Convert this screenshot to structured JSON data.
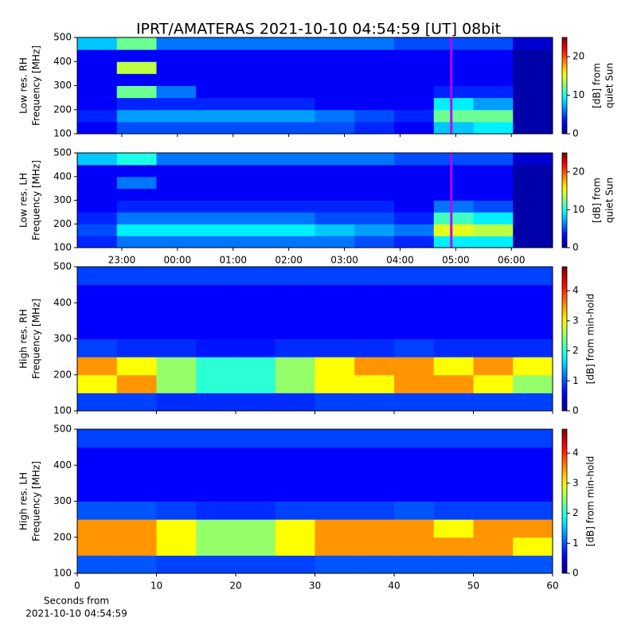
{
  "chart_data": [
    {
      "type": "heatmap",
      "title": "IPRT/AMATERAS 2021-10-10 04:54:59 [UT]   08bit",
      "ylabel": [
        "Low res. RH",
        "Frequency [MHz]"
      ],
      "xlim": [
        -1.8,
        6.74
      ],
      "xticks": [
        -1,
        0,
        1,
        2,
        3,
        4,
        5,
        6
      ],
      "show_xtick_labels": false,
      "ylim": [
        100,
        500
      ],
      "yticks": [
        100,
        200,
        300,
        400,
        500
      ],
      "colormap": "jet",
      "clim": [
        0,
        25
      ],
      "cticks": [
        0,
        10,
        20
      ],
      "colorbar_label": [
        "[dB] from",
        "quiet Sun"
      ],
      "now_line_x": 4.92,
      "now_line_color": "#c000ff",
      "z": [
        [
          3,
          5,
          5,
          5,
          5,
          5,
          5,
          4,
          3,
          8,
          9,
          1
        ],
        [
          4,
          7,
          7,
          7,
          7,
          7,
          6,
          5,
          4,
          12,
          12,
          1
        ],
        [
          3,
          4,
          4,
          4,
          4,
          4,
          3,
          3,
          3,
          9,
          7,
          1
        ],
        [
          3,
          12,
          6,
          3,
          3,
          3,
          3,
          3,
          3,
          4,
          4,
          1
        ],
        [
          3,
          3,
          3,
          3,
          3,
          3,
          3,
          3,
          3,
          3,
          3,
          1
        ],
        [
          3,
          14,
          3,
          3,
          3,
          3,
          3,
          3,
          3,
          3,
          3,
          1
        ],
        [
          3,
          3,
          3,
          3,
          3,
          3,
          3,
          3,
          3,
          3,
          3,
          1
        ],
        [
          8,
          12,
          6,
          6,
          6,
          6,
          6,
          6,
          5,
          5,
          5,
          2
        ]
      ]
    },
    {
      "type": "heatmap",
      "ylabel": [
        "Low res. LH",
        "Frequency [MHz]"
      ],
      "xlim": [
        -1.8,
        6.74
      ],
      "xticks": [
        {
          "value": -1,
          "label": "23:00"
        },
        {
          "value": 0,
          "label": "00:00"
        },
        {
          "value": 1,
          "label": "01:00"
        },
        {
          "value": 2,
          "label": "02:00"
        },
        {
          "value": 3,
          "label": "03:00"
        },
        {
          "value": 4,
          "label": "04:00"
        },
        {
          "value": 5,
          "label": "05:00"
        },
        {
          "value": 6,
          "label": "06:00"
        }
      ],
      "show_xtick_labels": true,
      "ylim": [
        100,
        500
      ],
      "yticks": [
        100,
        200,
        300,
        400,
        500
      ],
      "colormap": "jet",
      "clim": [
        0,
        25
      ],
      "cticks": [
        0,
        10,
        20
      ],
      "colorbar_label": [
        "[dB] from",
        "quiet Sun"
      ],
      "now_line_x": 4.92,
      "now_line_color": "#c000ff",
      "z": [
        [
          4,
          6,
          6,
          6,
          6,
          6,
          6,
          5,
          4,
          9,
          9,
          1
        ],
        [
          5,
          9,
          9,
          9,
          9,
          9,
          8,
          7,
          6,
          15,
          14,
          1
        ],
        [
          4,
          6,
          6,
          6,
          6,
          6,
          5,
          5,
          4,
          11,
          9,
          1
        ],
        [
          3,
          4,
          4,
          4,
          4,
          4,
          4,
          4,
          3,
          6,
          5,
          1
        ],
        [
          3,
          3,
          3,
          3,
          3,
          3,
          3,
          3,
          3,
          3,
          3,
          1
        ],
        [
          3,
          6,
          3,
          3,
          3,
          3,
          3,
          3,
          3,
          3,
          3,
          1
        ],
        [
          3,
          3,
          3,
          3,
          3,
          3,
          3,
          3,
          3,
          3,
          3,
          1
        ],
        [
          8,
          10,
          6,
          6,
          6,
          6,
          6,
          6,
          5,
          5,
          5,
          2
        ]
      ]
    },
    {
      "type": "heatmap",
      "ylabel": [
        "High res. RH",
        "Frequency [MHz]"
      ],
      "xlim": [
        0,
        60
      ],
      "xticks": [
        0,
        10,
        20,
        30,
        40,
        50,
        60
      ],
      "show_xtick_labels": false,
      "ylim": [
        100,
        500
      ],
      "yticks": [
        100,
        200,
        300,
        400,
        500
      ],
      "colormap": "jet",
      "clim": [
        0,
        4.8
      ],
      "cticks": [
        0,
        1,
        2,
        3,
        4
      ],
      "colorbar_label": [
        "[dB] from min-hold"
      ],
      "z": [
        [
          0.9,
          0.9,
          0.8,
          0.8,
          0.8,
          0.8,
          0.9,
          0.9,
          0.9,
          0.9,
          0.9,
          0.9
        ],
        [
          3,
          3.5,
          2.5,
          2,
          2,
          2.5,
          3,
          3,
          3.5,
          3.5,
          3,
          2.5
        ],
        [
          3.5,
          3,
          2.5,
          2,
          2,
          2.5,
          3,
          3.5,
          3.5,
          3,
          3.5,
          3
        ],
        [
          0.9,
          0.8,
          0.8,
          0.7,
          0.7,
          0.8,
          0.8,
          0.8,
          0.9,
          0.8,
          0.8,
          0.8
        ],
        [
          0.6,
          0.6,
          0.6,
          0.6,
          0.6,
          0.6,
          0.6,
          0.6,
          0.6,
          0.6,
          0.6,
          0.6
        ],
        [
          0.6,
          0.6,
          0.6,
          0.6,
          0.6,
          0.6,
          0.6,
          0.6,
          0.6,
          0.6,
          0.6,
          0.6
        ],
        [
          0.6,
          0.6,
          0.6,
          0.6,
          0.6,
          0.6,
          0.6,
          0.6,
          0.6,
          0.6,
          0.6,
          0.6
        ],
        [
          0.9,
          0.9,
          0.9,
          0.9,
          0.9,
          0.9,
          0.9,
          0.9,
          0.9,
          0.9,
          0.9,
          0.9
        ]
      ]
    },
    {
      "type": "heatmap",
      "ylabel": [
        "High res. LH",
        "Frequency [MHz]"
      ],
      "xlabel": [
        "Seconds from",
        "2021-10-10 04:54:59"
      ],
      "xlim": [
        0,
        60
      ],
      "xticks": [
        0,
        10,
        20,
        30,
        40,
        50,
        60
      ],
      "show_xtick_labels": true,
      "ylim": [
        100,
        500
      ],
      "yticks": [
        100,
        200,
        300,
        400,
        500
      ],
      "colormap": "jet",
      "clim": [
        0,
        4.8
      ],
      "cticks": [
        0,
        1,
        2,
        3,
        4
      ],
      "colorbar_label": [
        "[dB] from min-hold"
      ],
      "z": [
        [
          1,
          1,
          0.9,
          0.9,
          0.9,
          0.9,
          1,
          1,
          1,
          1,
          1,
          1
        ],
        [
          3.5,
          3.5,
          3,
          2.5,
          2.5,
          3,
          3.5,
          3.5,
          3.5,
          3.5,
          3.5,
          3
        ],
        [
          3.5,
          3.5,
          3,
          2.5,
          2.5,
          3,
          3.5,
          3.5,
          3.5,
          3,
          3.5,
          3.5
        ],
        [
          1,
          1,
          0.9,
          0.8,
          0.8,
          0.9,
          0.9,
          0.9,
          1,
          0.9,
          0.9,
          0.9
        ],
        [
          0.6,
          0.6,
          0.6,
          0.6,
          0.6,
          0.6,
          0.6,
          0.6,
          0.6,
          0.6,
          0.6,
          0.6
        ],
        [
          0.6,
          0.6,
          0.6,
          0.6,
          0.6,
          0.6,
          0.6,
          0.6,
          0.6,
          0.6,
          0.6,
          0.6
        ],
        [
          0.6,
          0.6,
          0.6,
          0.6,
          0.6,
          0.6,
          0.6,
          0.6,
          0.6,
          0.6,
          0.6,
          0.6
        ],
        [
          0.9,
          0.9,
          0.9,
          0.9,
          0.9,
          0.9,
          0.9,
          0.9,
          0.9,
          0.9,
          0.9,
          0.9
        ]
      ]
    }
  ]
}
